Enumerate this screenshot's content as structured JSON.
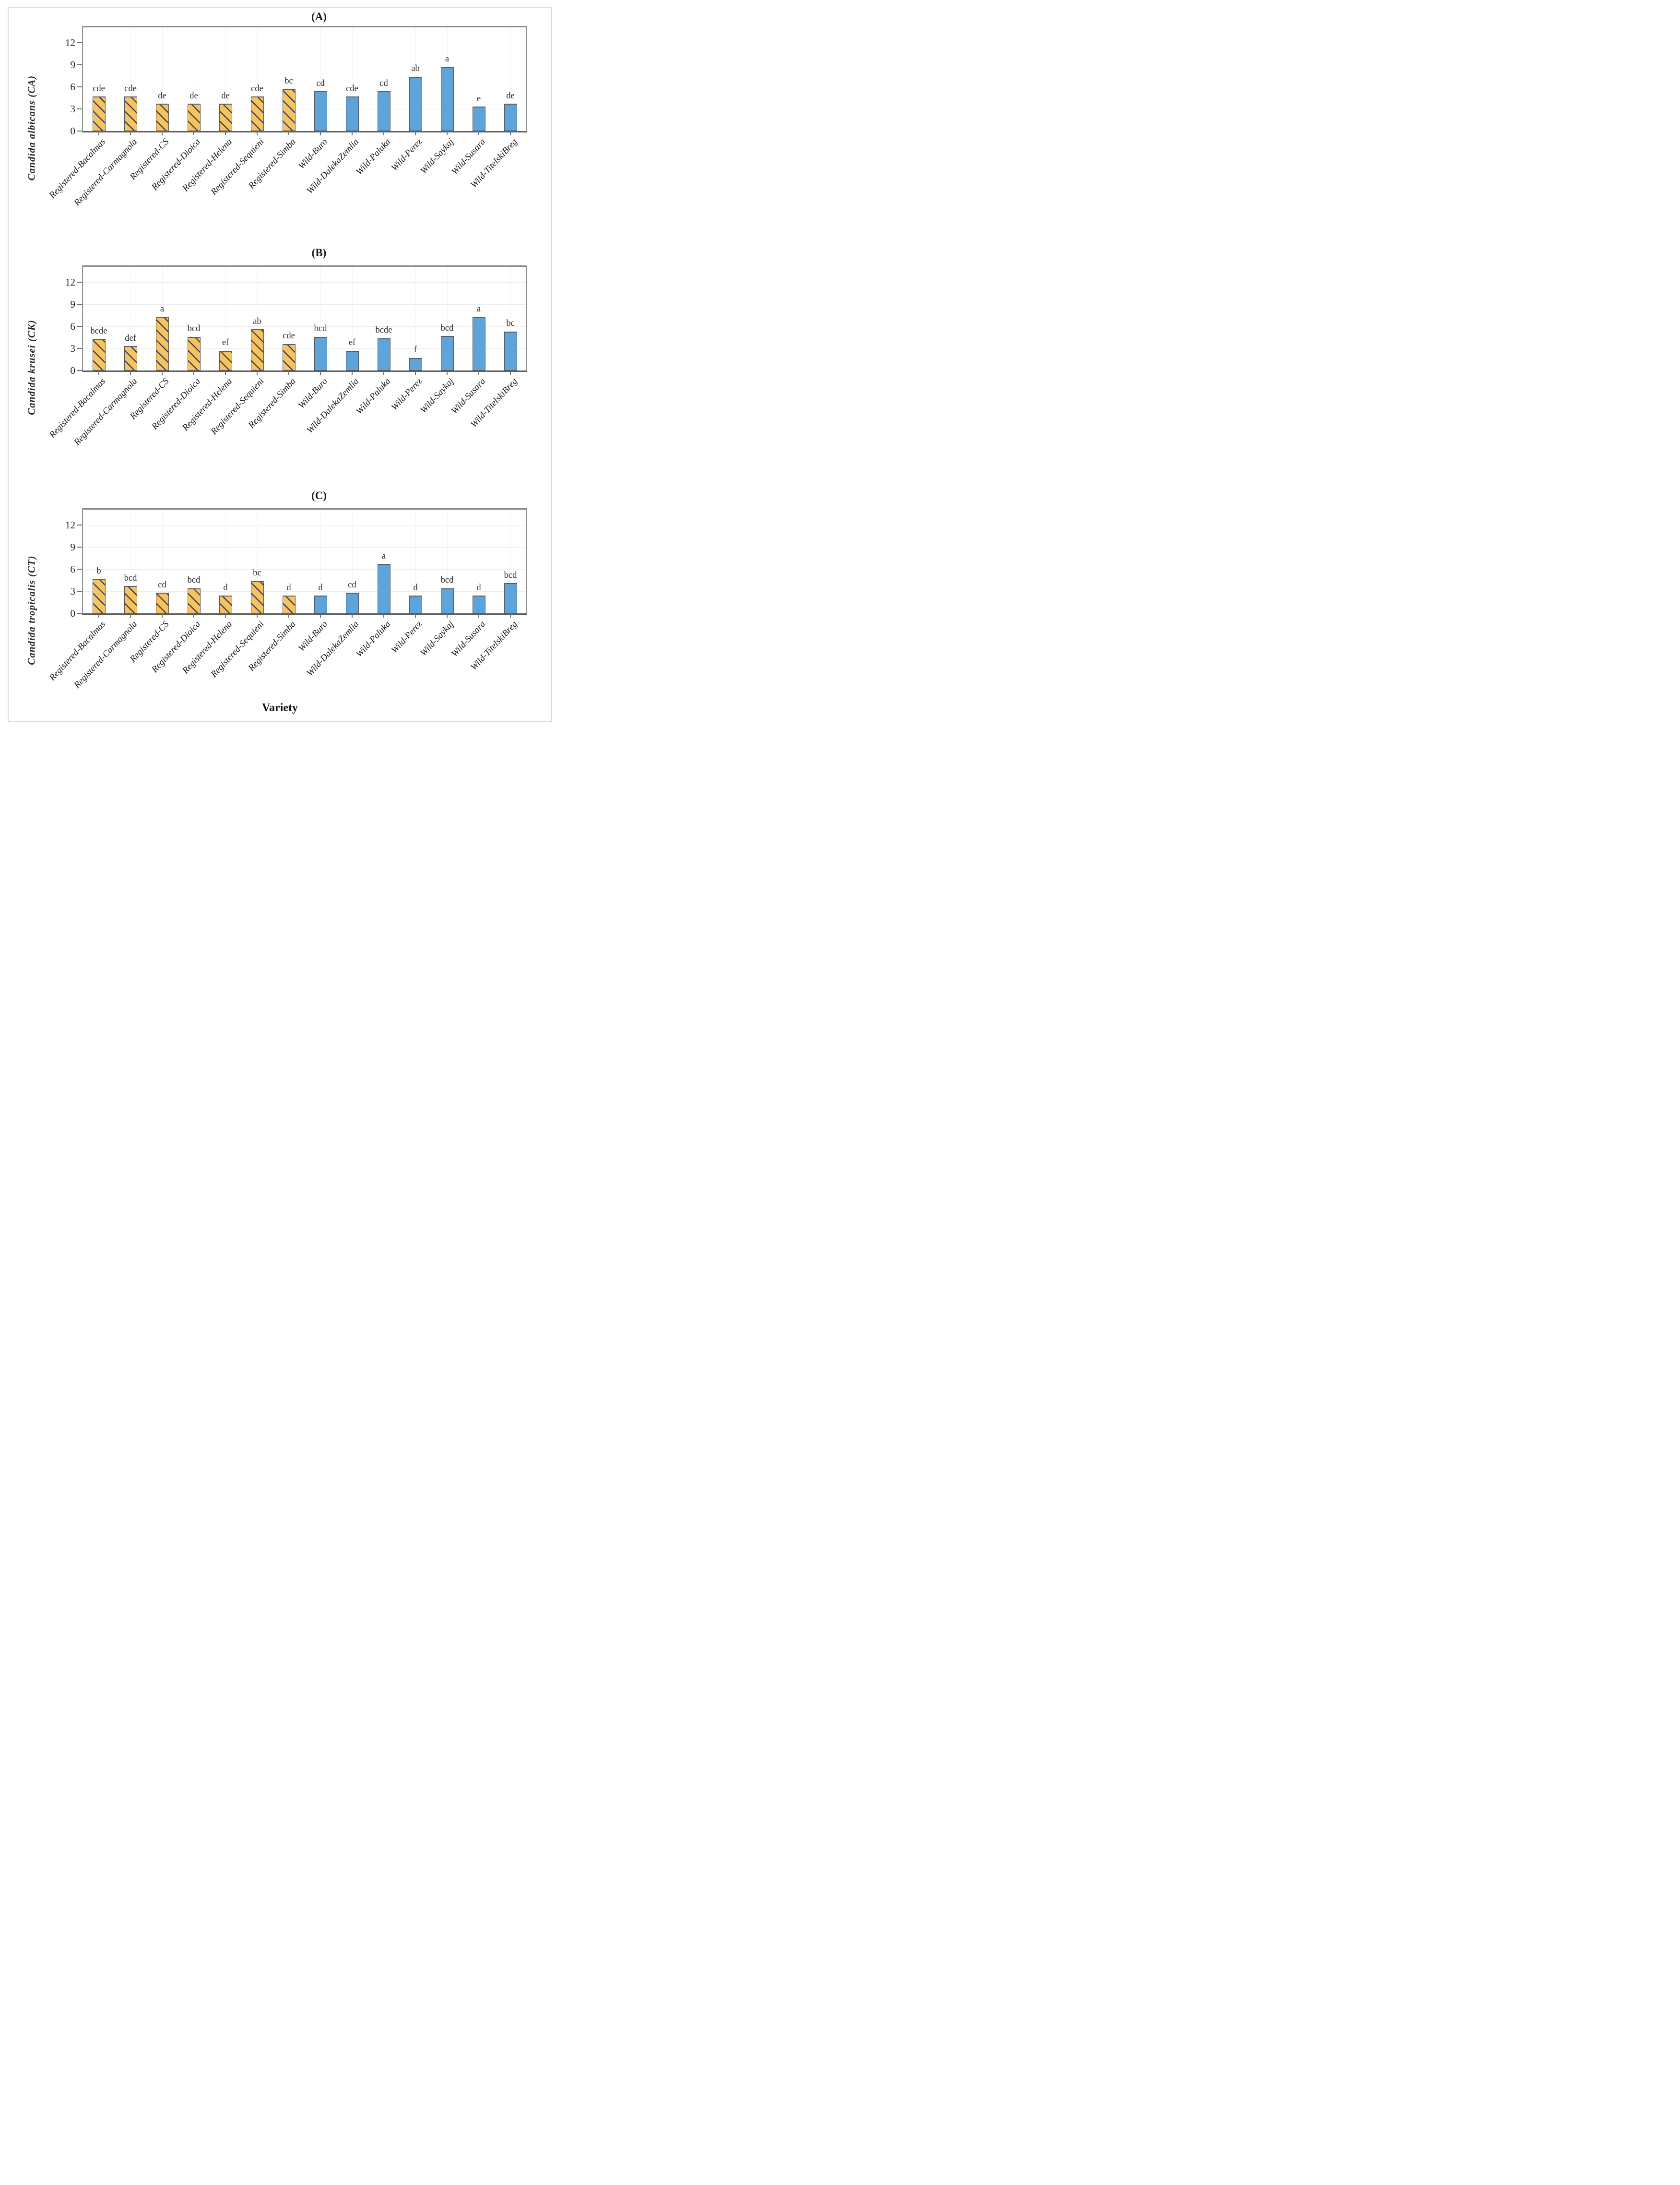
{
  "figure": {
    "xlabel": "Variety",
    "group_encoding": [
      {
        "name_prefix": "Registered",
        "bar_style": "hatched-orange"
      },
      {
        "name_prefix": "Wild",
        "bar_style": "solid-blue"
      }
    ],
    "colors": {
      "registered_fill": "#f6c35f",
      "registered_hatch": "#3e4459",
      "wild_fill": "#5fa3db",
      "bar_border": "#53575e",
      "axis_frame": "#8a8a8a",
      "gridline": "#ececec"
    }
  },
  "chart_data": [
    {
      "type": "bar",
      "title": "(A)",
      "ylabel": "Candida albicans (CA)",
      "categories": [
        "Registered-Bacalmas",
        "Registered-Carmagnola",
        "Registered-CS",
        "Registered-Dioica",
        "Registered-Helena",
        "Registered-Sequieni",
        "Registered-Simba",
        "Wild-Buro",
        "Wild-DalekaZemlia",
        "Wild-Paluka",
        "Wild-Perez",
        "Wild-Saykaj",
        "Wild-Susara",
        "Wild-TitelskiBreg"
      ],
      "values": [
        4.7,
        4.7,
        3.7,
        3.7,
        3.7,
        4.7,
        5.7,
        5.4,
        4.7,
        5.4,
        7.4,
        8.7,
        3.3,
        3.7
      ],
      "sig_labels": [
        "cde",
        "cde",
        "de",
        "de",
        "de",
        "cde",
        "bc",
        "cd",
        "cde",
        "cd",
        "ab",
        "a",
        "e",
        "de"
      ],
      "yticks": [
        0,
        3,
        6,
        9,
        12
      ],
      "ylim": [
        0,
        14.1
      ],
      "grid": true,
      "legend": "none"
    },
    {
      "type": "bar",
      "title": "(B)",
      "ylabel": "Candida krusei (CK)",
      "categories": [
        "Registered-Bacalmas",
        "Registered-Carmagnola",
        "Registered-CS",
        "Registered-Dioica",
        "Registered-Helena",
        "Registered-Sequieni",
        "Registered-Simba",
        "Wild-Buro",
        "Wild-DalekaZemlia",
        "Wild-Paluka",
        "Wild-Perez",
        "Wild-Saykaj",
        "Wild-Susara",
        "Wild-TitelskiBreg"
      ],
      "values": [
        4.3,
        3.3,
        7.3,
        4.6,
        2.7,
        5.6,
        3.6,
        4.6,
        2.7,
        4.4,
        1.7,
        4.7,
        7.3,
        5.3
      ],
      "sig_labels": [
        "bcde",
        "def",
        "a",
        "bcd",
        "ef",
        "ab",
        "cde",
        "bcd",
        "ef",
        "bcde",
        "f",
        "bcd",
        "a",
        "bc"
      ],
      "yticks": [
        0,
        3,
        6,
        9,
        12
      ],
      "ylim": [
        0,
        14.1
      ],
      "grid": true,
      "legend": "none"
    },
    {
      "type": "bar",
      "title": "(C)",
      "ylabel": "Candida tropicalis (CT)",
      "categories": [
        "Registered-Bacalmas",
        "Registered-Carmagnola",
        "Registered-CS",
        "Registered-Dioica",
        "Registered-Helena",
        "Registered-Sequieni",
        "Registered-Simba",
        "Wild-Buro",
        "Wild-DalekaZemlia",
        "Wild-Paluka",
        "Wild-Perez",
        "Wild-Saykaj",
        "Wild-Susara",
        "Wild-TitelskiBreg"
      ],
      "values": [
        4.7,
        3.7,
        2.8,
        3.4,
        2.4,
        4.4,
        2.4,
        2.4,
        2.8,
        6.7,
        2.4,
        3.4,
        2.4,
        4.1
      ],
      "sig_labels": [
        "b",
        "bcd",
        "cd",
        "bcd",
        "d",
        "bc",
        "d",
        "d",
        "cd",
        "a",
        "d",
        "bcd",
        "d",
        "bcd"
      ],
      "yticks": [
        0,
        3,
        6,
        9,
        12
      ],
      "ylim": [
        0,
        14.1
      ],
      "grid": true,
      "legend": "none"
    }
  ]
}
